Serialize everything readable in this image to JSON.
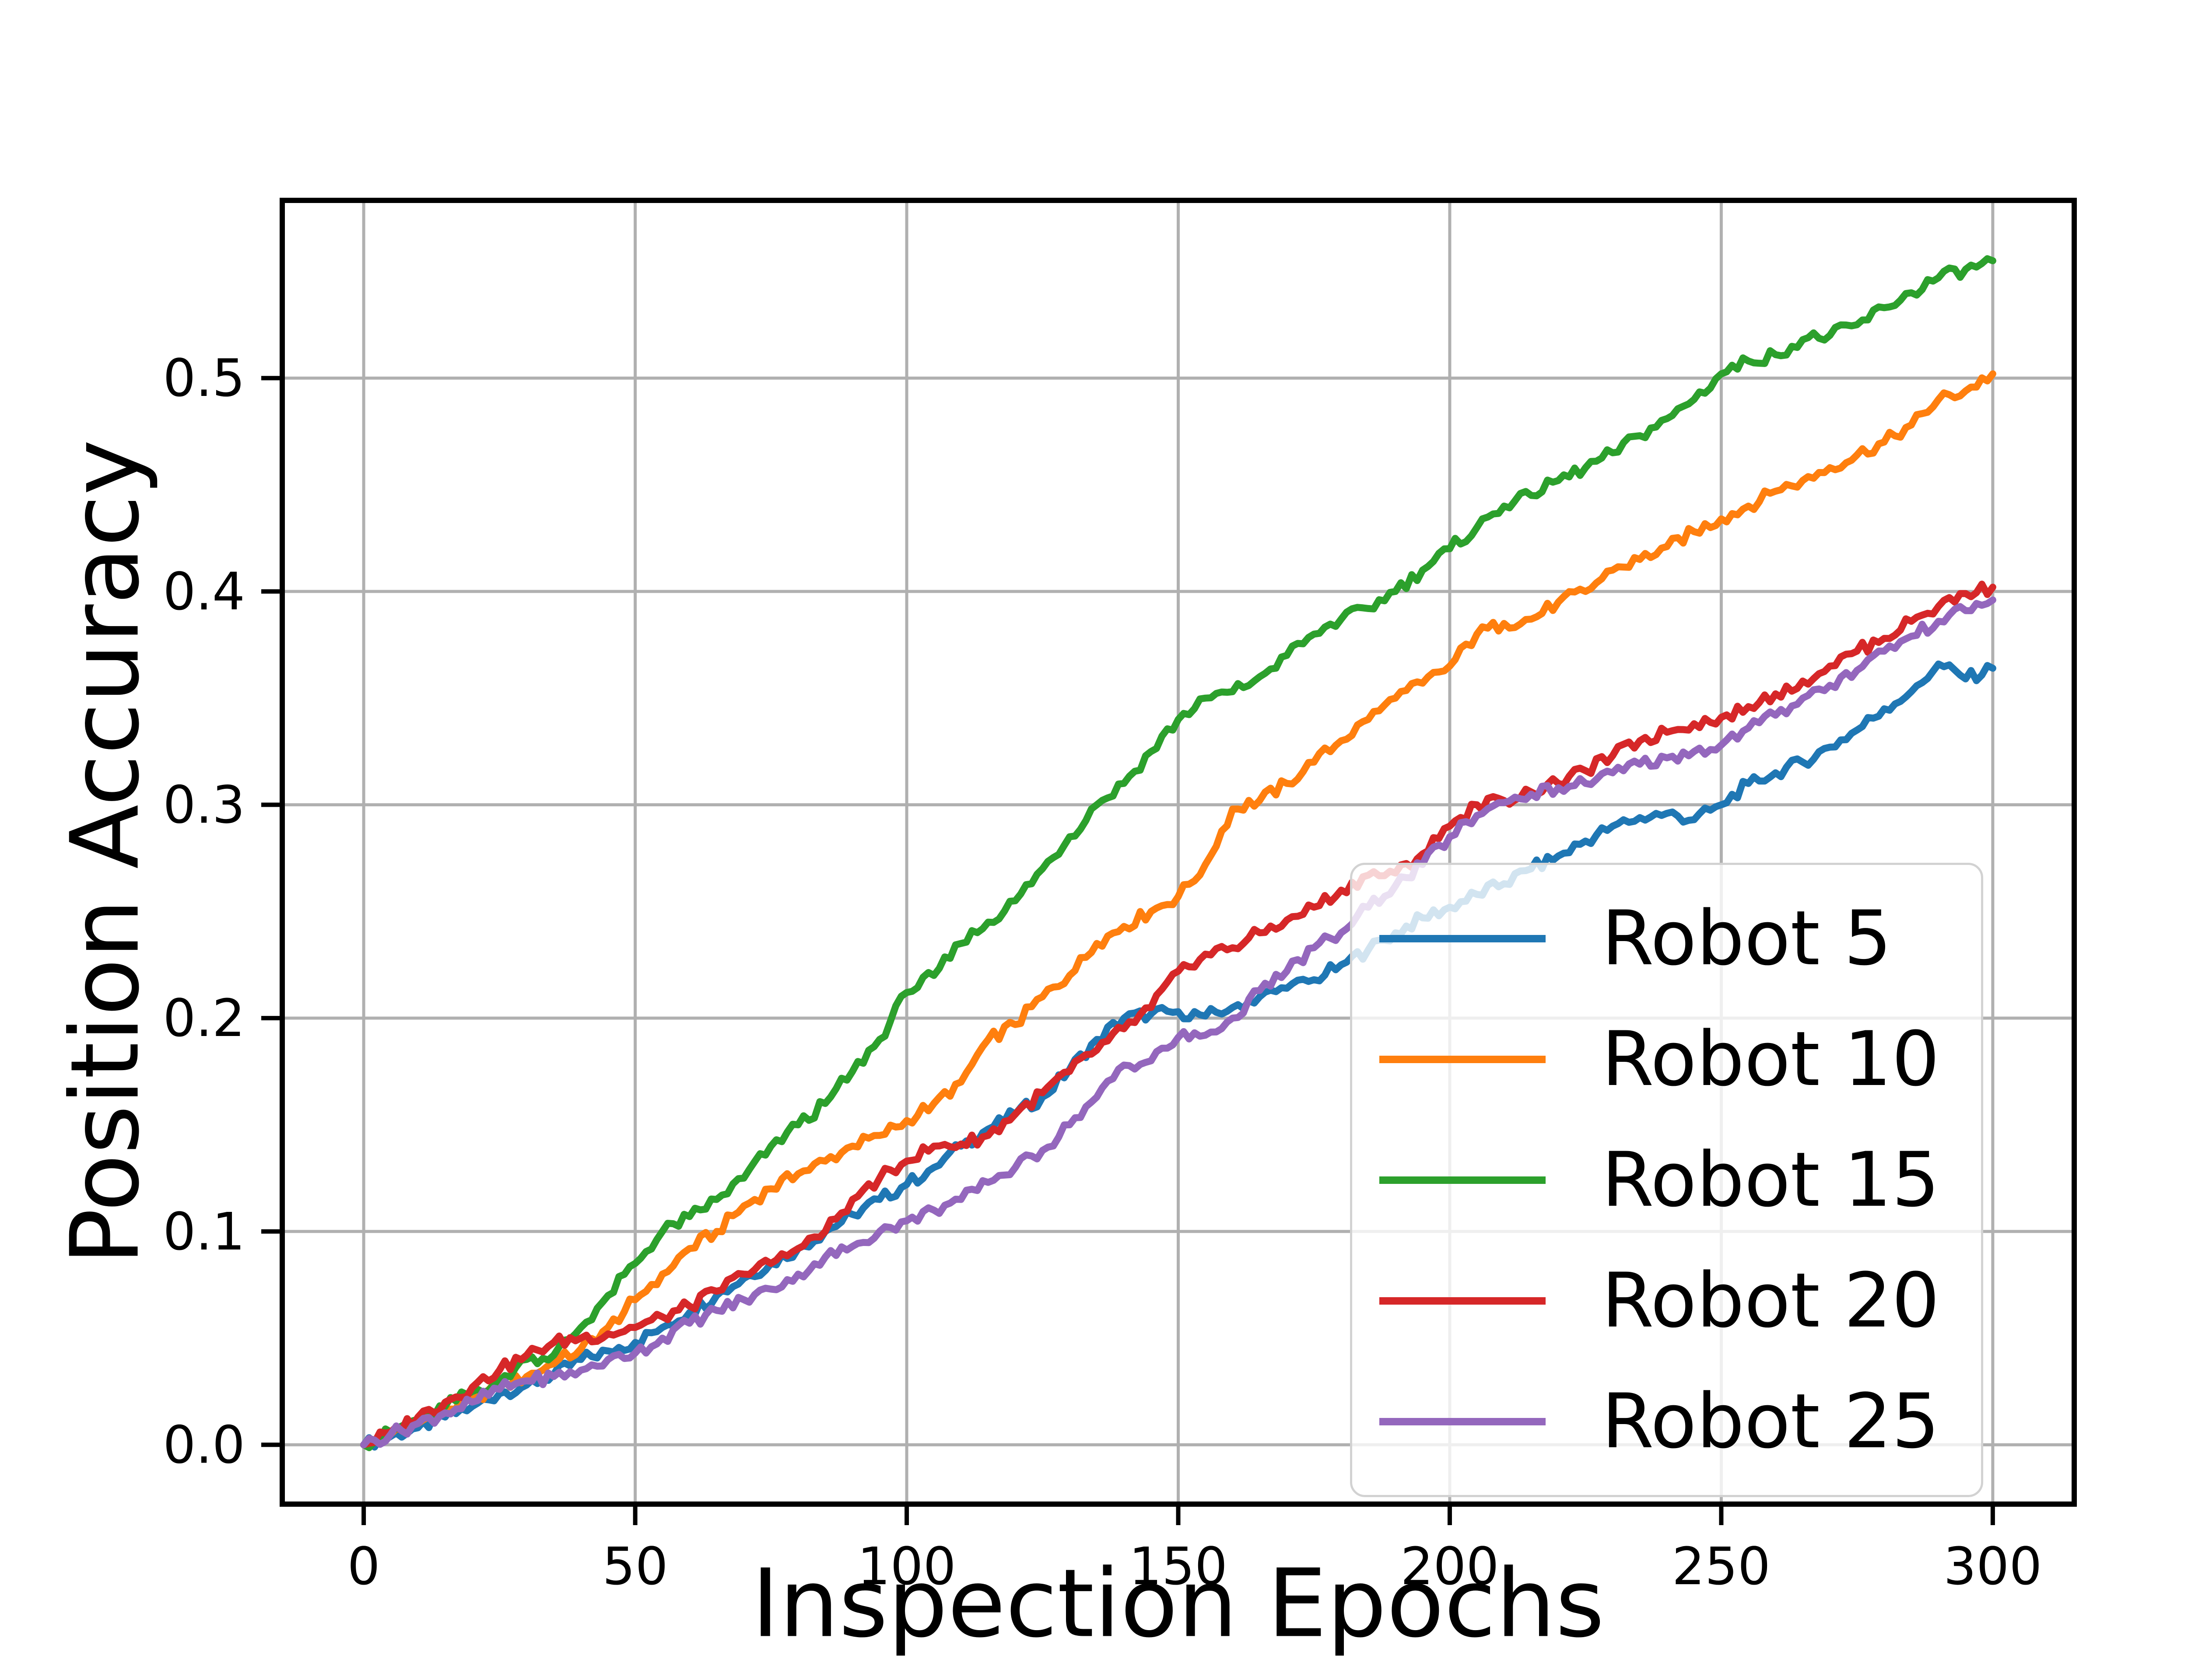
{
  "chart_data": {
    "type": "line",
    "title": "",
    "xlabel": "Inspection Epochs",
    "ylabel": "Position Accuracy",
    "xlim": [
      -15,
      315
    ],
    "ylim": [
      -0.0278,
      0.5833
    ],
    "x_ticks": [
      0,
      50,
      100,
      150,
      200,
      250,
      300
    ],
    "x_tick_labels": [
      "0",
      "50",
      "100",
      "150",
      "200",
      "250",
      "300"
    ],
    "y_ticks": [
      0.0,
      0.1,
      0.2,
      0.3,
      0.4,
      0.5
    ],
    "y_tick_labels": [
      "0.0",
      "0.1",
      "0.2",
      "0.3",
      "0.4",
      "0.5"
    ],
    "grid": true,
    "grid_color": "#b0b0b0",
    "axis_color": "#000000",
    "legend_position": "lower right",
    "x": [
      0,
      5,
      10,
      15,
      20,
      25,
      30,
      35,
      40,
      45,
      50,
      55,
      60,
      65,
      70,
      75,
      80,
      85,
      90,
      95,
      100,
      105,
      110,
      115,
      120,
      125,
      130,
      135,
      140,
      145,
      150,
      155,
      160,
      165,
      170,
      175,
      180,
      185,
      190,
      195,
      200,
      205,
      210,
      215,
      220,
      225,
      230,
      235,
      240,
      245,
      250,
      255,
      260,
      265,
      270,
      275,
      280,
      285,
      290,
      295,
      300
    ],
    "series": [
      {
        "name": "Robot 5",
        "color": "#1f77b4",
        "values": [
          0.0,
          0.004,
          0.008,
          0.013,
          0.018,
          0.024,
          0.028,
          0.033,
          0.04,
          0.044,
          0.048,
          0.055,
          0.062,
          0.07,
          0.078,
          0.085,
          0.092,
          0.1,
          0.108,
          0.115,
          0.122,
          0.13,
          0.14,
          0.148,
          0.155,
          0.163,
          0.176,
          0.19,
          0.2,
          0.202,
          0.203,
          0.201,
          0.205,
          0.21,
          0.214,
          0.218,
          0.225,
          0.232,
          0.24,
          0.247,
          0.252,
          0.258,
          0.263,
          0.27,
          0.276,
          0.283,
          0.29,
          0.294,
          0.296,
          0.293,
          0.3,
          0.31,
          0.315,
          0.32,
          0.327,
          0.335,
          0.345,
          0.353,
          0.366,
          0.359,
          0.364
        ]
      },
      {
        "name": "Robot 10",
        "color": "#ff7f0e",
        "values": [
          0.0,
          0.005,
          0.01,
          0.016,
          0.022,
          0.027,
          0.032,
          0.038,
          0.045,
          0.055,
          0.068,
          0.08,
          0.092,
          0.1,
          0.112,
          0.12,
          0.127,
          0.133,
          0.14,
          0.145,
          0.152,
          0.16,
          0.17,
          0.19,
          0.197,
          0.21,
          0.22,
          0.235,
          0.243,
          0.25,
          0.257,
          0.272,
          0.298,
          0.302,
          0.31,
          0.32,
          0.33,
          0.34,
          0.35,
          0.357,
          0.365,
          0.38,
          0.385,
          0.387,
          0.395,
          0.4,
          0.41,
          0.415,
          0.421,
          0.428,
          0.434,
          0.44,
          0.447,
          0.452,
          0.458,
          0.464,
          0.47,
          0.478,
          0.49,
          0.494,
          0.502
        ]
      },
      {
        "name": "Robot 15",
        "color": "#2ca02c",
        "values": [
          0.0,
          0.006,
          0.012,
          0.018,
          0.025,
          0.03,
          0.04,
          0.042,
          0.055,
          0.07,
          0.085,
          0.1,
          0.107,
          0.115,
          0.125,
          0.14,
          0.15,
          0.16,
          0.175,
          0.19,
          0.212,
          0.22,
          0.235,
          0.245,
          0.255,
          0.27,
          0.285,
          0.3,
          0.31,
          0.325,
          0.34,
          0.35,
          0.353,
          0.36,
          0.37,
          0.38,
          0.387,
          0.392,
          0.4,
          0.41,
          0.42,
          0.43,
          0.44,
          0.445,
          0.452,
          0.458,
          0.465,
          0.473,
          0.481,
          0.49,
          0.502,
          0.508,
          0.511,
          0.518,
          0.52,
          0.525,
          0.533,
          0.54,
          0.547,
          0.551,
          0.555
        ]
      },
      {
        "name": "Robot 20",
        "color": "#d62728",
        "values": [
          0.0,
          0.006,
          0.013,
          0.02,
          0.027,
          0.035,
          0.042,
          0.048,
          0.05,
          0.052,
          0.055,
          0.06,
          0.065,
          0.072,
          0.08,
          0.085,
          0.092,
          0.1,
          0.115,
          0.125,
          0.133,
          0.14,
          0.141,
          0.145,
          0.155,
          0.165,
          0.175,
          0.185,
          0.195,
          0.205,
          0.222,
          0.23,
          0.233,
          0.24,
          0.246,
          0.252,
          0.26,
          0.267,
          0.268,
          0.277,
          0.29,
          0.3,
          0.302,
          0.306,
          0.31,
          0.316,
          0.323,
          0.33,
          0.334,
          0.338,
          0.341,
          0.346,
          0.352,
          0.358,
          0.365,
          0.372,
          0.378,
          0.386,
          0.393,
          0.399,
          0.402
        ]
      },
      {
        "name": "Robot 25",
        "color": "#9467bd",
        "values": [
          0.0,
          0.005,
          0.01,
          0.015,
          0.02,
          0.026,
          0.03,
          0.032,
          0.035,
          0.04,
          0.043,
          0.05,
          0.057,
          0.063,
          0.068,
          0.073,
          0.08,
          0.088,
          0.093,
          0.1,
          0.105,
          0.11,
          0.115,
          0.123,
          0.13,
          0.138,
          0.15,
          0.163,
          0.178,
          0.18,
          0.191,
          0.192,
          0.2,
          0.213,
          0.222,
          0.233,
          0.24,
          0.252,
          0.262,
          0.272,
          0.285,
          0.295,
          0.301,
          0.305,
          0.308,
          0.31,
          0.315,
          0.319,
          0.322,
          0.325,
          0.328,
          0.336,
          0.342,
          0.35,
          0.356,
          0.363,
          0.372,
          0.379,
          0.386,
          0.391,
          0.396
        ]
      }
    ]
  }
}
